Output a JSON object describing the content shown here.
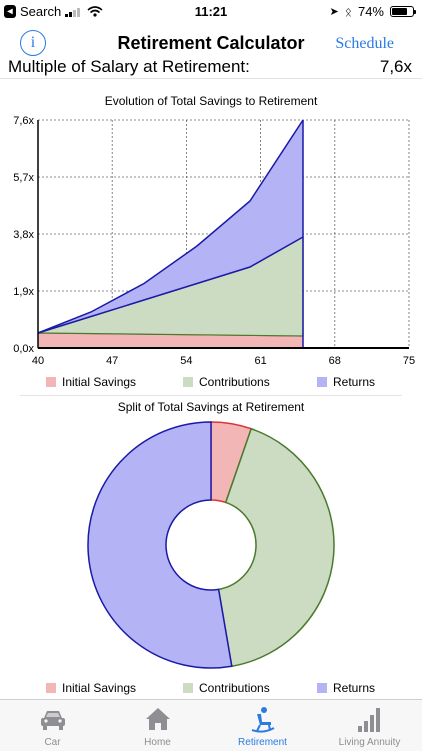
{
  "status": {
    "back_app": "Search",
    "time": "11:21",
    "battery": "74%",
    "battery_level": 0.74
  },
  "nav": {
    "title": "Retirement Calculator",
    "schedule": "Schedule",
    "info_glyph": "i"
  },
  "summary": {
    "label": "Multiple of Salary at Retirement:",
    "value": "7,6x"
  },
  "colors": {
    "initial": "#f2b6b6",
    "contributions": "#cbdcc3",
    "returns": "#b3b3f5",
    "line_blue": "#1a1aa8",
    "line_green": "#4a7a2c",
    "line_red": "#d33",
    "accent": "#2a7be4"
  },
  "chart_data": [
    {
      "type": "area",
      "title": "Evolution of Total Savings to Retirement",
      "x_ticks": [
        "40",
        "47",
        "54",
        "61",
        "68",
        "75"
      ],
      "y_ticks": [
        "0,0x",
        "1,9x",
        "3,8x",
        "5,7x",
        "7,6x"
      ],
      "xlim": [
        40,
        75
      ],
      "ylim": [
        0,
        7.6
      ],
      "grid": true,
      "series": [
        {
          "name": "Initial Savings",
          "x": [
            40,
            65
          ],
          "values": [
            0.5,
            0.4
          ]
        },
        {
          "name": "Contributions",
          "x": [
            40,
            45,
            50,
            55,
            60,
            65
          ],
          "values": [
            0.0,
            0.57,
            1.14,
            1.71,
            2.28,
            3.3
          ]
        },
        {
          "name": "Returns",
          "x": [
            40,
            45,
            50,
            55,
            60,
            65
          ],
          "values": [
            0.0,
            0.15,
            0.55,
            1.25,
            2.2,
            3.9
          ]
        }
      ],
      "legend": [
        "Initial Savings",
        "Contributions",
        "Returns"
      ],
      "legend_position": "bottom"
    },
    {
      "type": "pie",
      "title": "Split of Total Savings at Retirement",
      "labels": [
        "Initial Savings",
        "Contributions",
        "Returns"
      ],
      "values": [
        5.3,
        42.0,
        52.7
      ],
      "legend": [
        "Initial Savings",
        "Contributions",
        "Returns"
      ],
      "legend_position": "bottom"
    }
  ],
  "tabs": [
    {
      "label": "Car",
      "icon": "car-icon",
      "active": false
    },
    {
      "label": "Home",
      "icon": "home-icon",
      "active": false
    },
    {
      "label": "Retirement",
      "icon": "rocking-chair-icon",
      "active": true
    },
    {
      "label": "Living Annuity",
      "icon": "bars-icon",
      "active": false
    }
  ]
}
